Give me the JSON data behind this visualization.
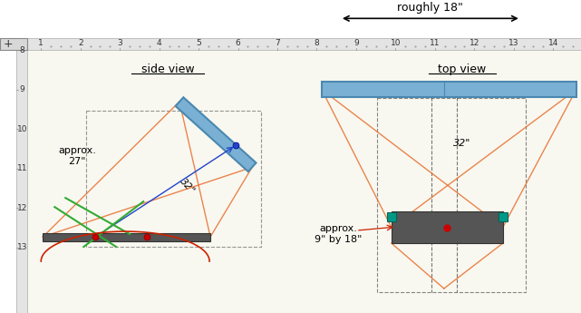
{
  "bg_color": "#ffffff",
  "paper_bg": "#f8f8f0",
  "title_above": "roughly 18\"",
  "title_side_view": "side view",
  "title_top_view": "top view",
  "label_27": "approx.\n27\"",
  "label_32": "32\"",
  "label_9x18": "approx.\n9\" by 18\"",
  "fresnel_color": "#7ab0d4",
  "fresnel_border": "#4a88b0",
  "mirror_dark": "#555555",
  "mirror_border": "#333333",
  "orange_line": "#e87030",
  "blue_line": "#2244cc",
  "green_line": "#33aa33",
  "cyan_sq": "#009988",
  "dashed_color": "#555555",
  "red_dot": "#cc0000",
  "red_line": "#cc2200"
}
